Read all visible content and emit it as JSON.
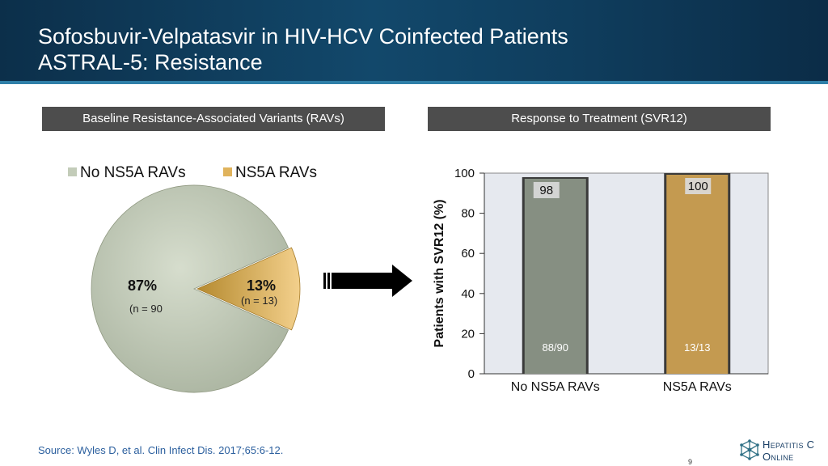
{
  "slide": {
    "title_line1": "Sofosbuvir-Velpatasvir in HIV-HCV Coinfected Patients",
    "title_line2": "ASTRAL-5: Resistance",
    "left_header": "Baseline Resistance-Associated Variants (RAVs)",
    "right_header": "Response to Treatment (SVR12)",
    "source": "Source: Wyles D, et al. Clin Infect Dis. 2017;65:6-12.",
    "page_number": "9",
    "logo": {
      "line1": "Hepatitis C",
      "line2": "Online",
      "icon": "network-logo-icon"
    }
  },
  "chart_data": [
    {
      "type": "pie",
      "legend_position": "top",
      "series": [
        {
          "name": "No NS5A  RAVs",
          "value": 87,
          "pct_label": "87%",
          "n_label": "(n = 90",
          "color": "#c3ccb9"
        },
        {
          "name": "NS5A RAVs",
          "value": 13,
          "pct_label": "13%",
          "n_label": "(n = 13)",
          "color": "#e0b35c"
        }
      ]
    },
    {
      "type": "bar",
      "categories": [
        "No NS5A RAVs",
        "NS5A RAVs"
      ],
      "values": [
        98,
        100
      ],
      "value_labels": [
        "98",
        "100"
      ],
      "inner_labels": [
        "88/90",
        "13/13"
      ],
      "colors": [
        "#868f82",
        "#c49a50"
      ],
      "ylabel": "Patients with SVR12 (%)",
      "ylim": [
        0,
        100
      ],
      "yticks": [
        0,
        20,
        40,
        60,
        80,
        100
      ],
      "plot_background": "#e6e9ef",
      "grid": false
    }
  ]
}
